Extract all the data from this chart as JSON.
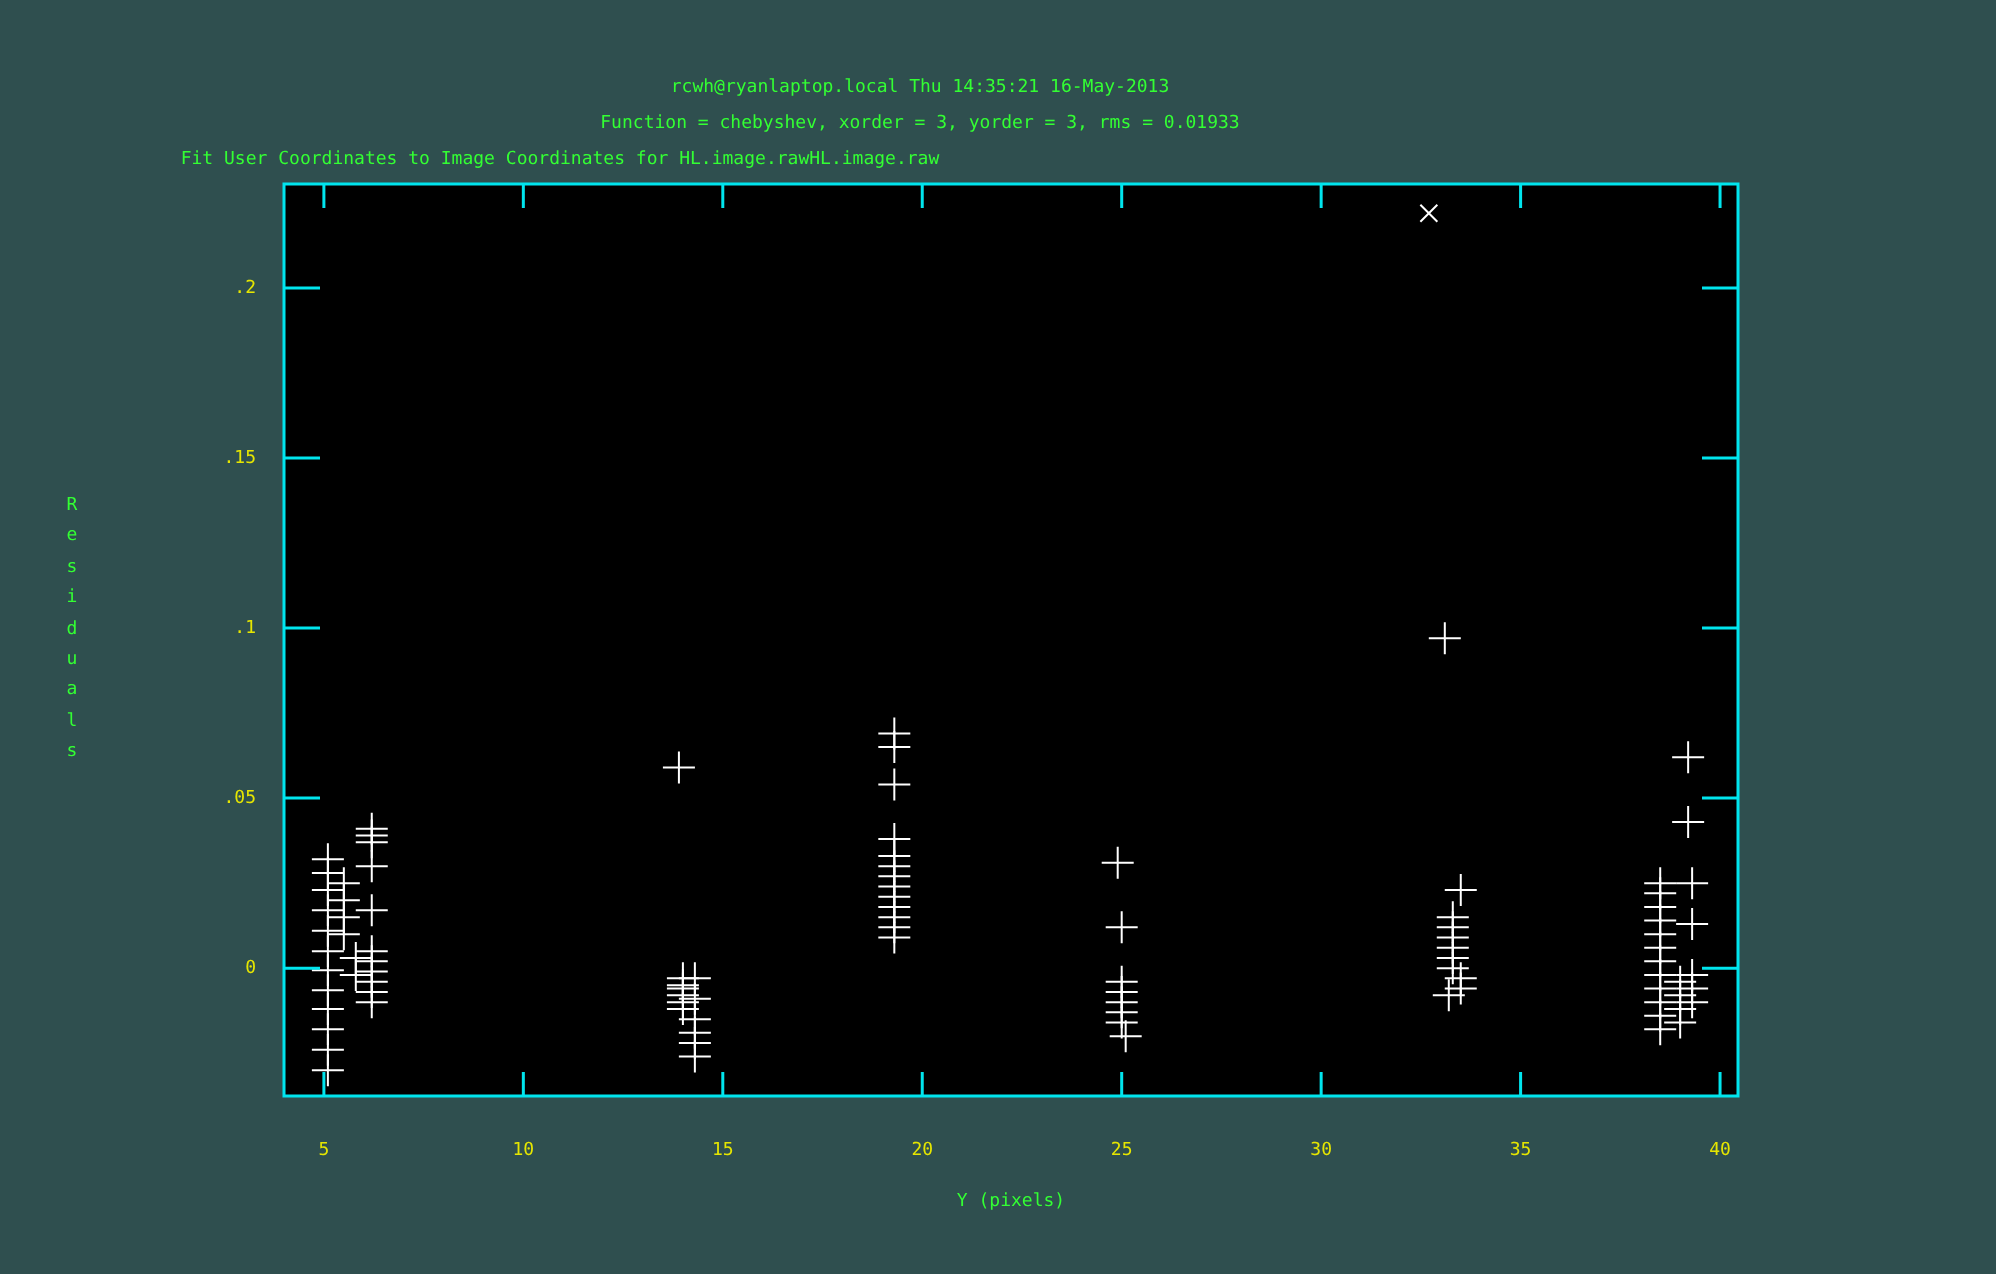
{
  "chart_data": {
    "type": "scatter",
    "title": "rcwh@ryanlaptop.local Thu 14:35:21 16-May-2013",
    "subtitle": "Function = chebyshev, xorder = 3, yorder = 3, rms = 0.01933",
    "annotations": [
      "Fit User Coordinates to Image Coordinates for HL.image.rawHL.image.raw"
    ],
    "xlabel": "Y (pixels)",
    "ylabel": "Residuals",
    "xlim": [
      4,
      40.45
    ],
    "ylim": [
      -0.0376,
      0.2306
    ],
    "xticks": [
      5,
      10,
      15,
      20,
      25,
      30,
      35,
      40
    ],
    "yticks": [
      {
        "value": 0,
        "label": "0"
      },
      {
        "value": 0.05,
        "label": ".05"
      },
      {
        "value": 0.1,
        "label": ".1"
      },
      {
        "value": 0.15,
        "label": ".15"
      },
      {
        "value": 0.2,
        "label": ".2"
      }
    ],
    "legend": false,
    "series": [
      {
        "color": "#ffffff",
        "marker": "cross",
        "x": [
          5.1,
          5.1,
          5.1,
          5.1,
          5.1,
          5.1,
          5.1,
          5.1,
          5.1,
          5.1,
          5.1,
          5.1,
          5.5,
          5.5,
          5.5,
          5.5,
          5.8,
          5.8,
          6.2,
          6.2,
          6.2,
          6.2,
          6.2,
          6.2,
          6.2,
          6.2,
          6.2,
          6.2,
          6.2,
          13.9,
          14.0,
          14.0,
          14.0,
          14.0,
          14.0,
          14.0,
          14.3,
          14.3,
          14.3,
          14.3,
          14.3,
          14.3,
          19.3,
          19.3,
          19.3,
          19.3,
          19.3,
          19.3,
          19.3,
          19.3,
          19.3,
          19.3,
          19.3,
          19.3,
          19.3,
          24.9,
          25.0,
          25.0,
          25.0,
          25.0,
          25.0,
          25.0,
          25.1,
          33.1,
          33.5,
          33.3,
          33.3,
          33.3,
          33.3,
          33.3,
          33.3,
          33.5,
          33.5,
          33.2,
          38.5,
          38.5,
          38.5,
          38.5,
          38.5,
          38.5,
          38.5,
          38.5,
          38.5,
          38.5,
          38.5,
          38.5,
          39.0,
          39.0,
          39.0,
          39.0,
          39.2,
          39.2,
          39.3,
          39.3,
          39.3,
          39.3,
          39.3
        ],
        "values": [
          -0.03,
          -0.024,
          -0.018,
          -0.012,
          -0.0065,
          -0.0006,
          0.005,
          0.011,
          0.017,
          0.023,
          0.028,
          0.032,
          0.025,
          0.02,
          0.015,
          0.01,
          0.003,
          -0.002,
          0.041,
          0.039,
          0.037,
          0.03,
          0.017,
          0.005,
          0.002,
          -0.001,
          -0.004,
          -0.007,
          -0.01,
          0.059,
          -0.003,
          -0.005,
          -0.006,
          -0.008,
          -0.01,
          -0.012,
          -0.003,
          -0.009,
          -0.015,
          -0.019,
          -0.022,
          -0.026,
          0.069,
          0.065,
          0.054,
          0.038,
          0.033,
          0.03,
          0.027,
          0.024,
          0.021,
          0.018,
          0.015,
          0.012,
          0.009,
          0.031,
          0.012,
          -0.004,
          -0.007,
          -0.01,
          -0.013,
          -0.016,
          -0.02,
          0.097,
          0.023,
          0.015,
          0.012,
          0.009,
          0.006,
          0.003,
          0.0,
          -0.003,
          -0.006,
          -0.008,
          0.025,
          0.022,
          0.018,
          0.014,
          0.01,
          0.006,
          0.002,
          -0.002,
          -0.006,
          -0.01,
          -0.014,
          -0.018,
          -0.004,
          -0.008,
          -0.012,
          -0.016,
          0.062,
          0.043,
          0.025,
          0.013,
          -0.002,
          -0.006,
          -0.01
        ]
      },
      {
        "color": "#ffffff",
        "marker": "x",
        "x": [
          32.7
        ],
        "values": [
          0.222
        ]
      }
    ]
  }
}
